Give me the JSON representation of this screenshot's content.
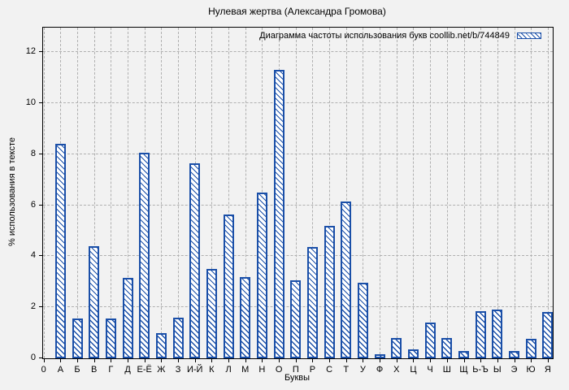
{
  "title": "Нулевая жертва (Александра Громова)",
  "colors": {
    "accent": "#1a4fa8",
    "background": "#f2f2f2",
    "grid": "#b0b0b0",
    "frame": "#000000"
  },
  "chart_data": {
    "type": "bar",
    "title": "Нулевая жертва (Александра Громова)",
    "legend": "Диаграмма частоты использования букв coollib.net/b/744849",
    "legend_position": "top-right-inside",
    "xlabel": "Буквы",
    "ylabel": "% использования в тексте",
    "ylim": [
      0,
      12.96
    ],
    "yticks": [
      0,
      2,
      4,
      6,
      8,
      10,
      12
    ],
    "grid": true,
    "hatch": "diagonal",
    "categories": [
      "0",
      "А",
      "Б",
      "В",
      "Г",
      "Д",
      "Е-Ё",
      "Ж",
      "З",
      "И-Й",
      "К",
      "Л",
      "М",
      "Н",
      "О",
      "П",
      "Р",
      "С",
      "Т",
      "У",
      "Ф",
      "Х",
      "Ц",
      "Ч",
      "Ш",
      "Щ",
      "Ь-Ъ",
      "Ы",
      "Э",
      "Ю",
      "Я"
    ],
    "values": [
      0,
      8.4,
      1.55,
      4.4,
      1.55,
      3.15,
      8.05,
      1.0,
      1.6,
      7.65,
      3.5,
      5.65,
      3.2,
      6.5,
      11.3,
      3.05,
      4.35,
      5.2,
      6.15,
      2.95,
      0.15,
      0.8,
      0.35,
      1.4,
      0.8,
      0.3,
      1.85,
      1.9,
      0.3,
      0.75,
      1.8
    ]
  }
}
